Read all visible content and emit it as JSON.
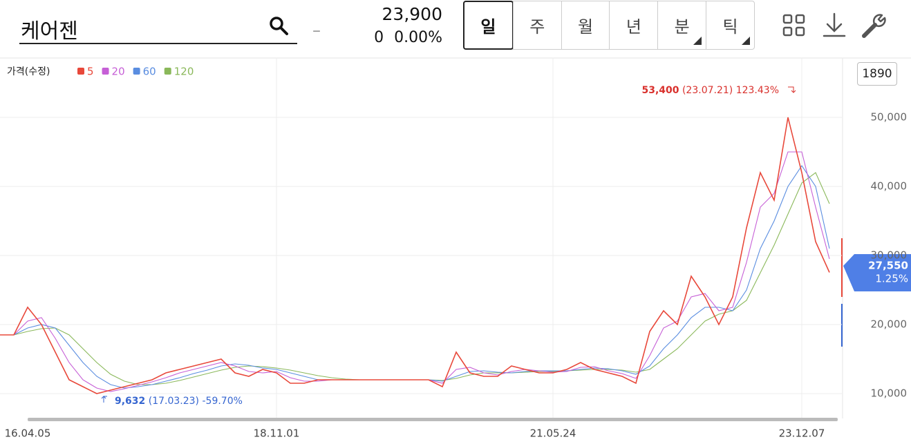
{
  "header": {
    "search": "케어젠",
    "dash": "–",
    "price": "23,900",
    "change": "0  0.00%",
    "tabs": [
      "일",
      "주",
      "월",
      "년",
      "분",
      "틱"
    ],
    "badge": "1890"
  },
  "chart_data": {
    "type": "line",
    "legend_title": "가격(수정)",
    "categories": [
      null,
      null,
      "16.04.05",
      null,
      null,
      null,
      null,
      null,
      null,
      null,
      null,
      null,
      null,
      null,
      null,
      null,
      null,
      null,
      null,
      null,
      "18.11.01",
      null,
      null,
      null,
      null,
      null,
      null,
      null,
      null,
      null,
      null,
      null,
      null,
      null,
      null,
      null,
      null,
      null,
      null,
      null,
      "21.05.24",
      null,
      null,
      null,
      null,
      null,
      null,
      null,
      null,
      null,
      null,
      null,
      null,
      null,
      null,
      null,
      null,
      null,
      "23.12.07",
      null,
      null
    ],
    "series": [
      {
        "name": "5",
        "color": "#e8483a",
        "values": [
          18500,
          18500,
          22500,
          20000,
          16000,
          12000,
          11000,
          10000,
          10500,
          11000,
          11500,
          12000,
          13000,
          13500,
          14000,
          14500,
          15000,
          13000,
          12500,
          13500,
          13000,
          11500,
          11500,
          12000,
          12000,
          12000,
          12000,
          12000,
          12000,
          12000,
          12000,
          12000,
          11000,
          16000,
          13000,
          12500,
          12500,
          14000,
          13500,
          13000,
          13000,
          13500,
          14500,
          13500,
          13000,
          12500,
          11500,
          19000,
          22000,
          20000,
          27000,
          24000,
          20000,
          24000,
          34000,
          42000,
          38000,
          50000,
          42000,
          32000,
          27550
        ]
      },
      {
        "name": "20",
        "color": "#c65fd6",
        "values": [
          18500,
          18500,
          20500,
          21000,
          18000,
          14500,
          12000,
          10800,
          10300,
          10700,
          11200,
          11700,
          12300,
          13000,
          13500,
          14000,
          14500,
          14000,
          13200,
          13000,
          13200,
          12300,
          11800,
          11800,
          12000,
          12000,
          12000,
          12000,
          12000,
          12000,
          12000,
          12000,
          11500,
          13500,
          13800,
          13000,
          12700,
          13200,
          13500,
          13300,
          13100,
          13200,
          13800,
          13900,
          13300,
          12900,
          12200,
          15500,
          19500,
          20500,
          24000,
          24500,
          22000,
          22500,
          29000,
          37000,
          39000,
          45000,
          45000,
          37000,
          29500
        ]
      },
      {
        "name": "60",
        "color": "#5a8de0",
        "values": [
          18500,
          18500,
          19500,
          20000,
          19500,
          17000,
          14500,
          12500,
          11300,
          10800,
          11000,
          11300,
          11800,
          12300,
          12900,
          13400,
          14000,
          14300,
          14100,
          13700,
          13500,
          13000,
          12500,
          12000,
          12000,
          12000,
          12000,
          12000,
          12000,
          12000,
          12000,
          12000,
          11800,
          12500,
          13200,
          13300,
          13100,
          13000,
          13200,
          13300,
          13300,
          13300,
          13500,
          13700,
          13600,
          13300,
          12800,
          14000,
          16500,
          18500,
          21000,
          22500,
          22500,
          22000,
          25000,
          31000,
          35000,
          40000,
          43000,
          40000,
          31000
        ]
      },
      {
        "name": "120",
        "color": "#8ab85a",
        "values": [
          18500,
          18500,
          19000,
          19400,
          19500,
          18500,
          16500,
          14500,
          12800,
          11800,
          11300,
          11300,
          11500,
          11900,
          12400,
          12900,
          13400,
          13800,
          14000,
          13900,
          13700,
          13400,
          13000,
          12600,
          12300,
          12100,
          12000,
          12000,
          12000,
          12000,
          12000,
          12000,
          11900,
          12200,
          12700,
          13000,
          13000,
          13000,
          13100,
          13200,
          13200,
          13300,
          13400,
          13500,
          13500,
          13400,
          13100,
          13500,
          15000,
          16500,
          18500,
          20500,
          21500,
          22000,
          23500,
          27500,
          31500,
          36000,
          40500,
          42000,
          37500
        ]
      }
    ],
    "ylim": [
      6500,
      58600
    ],
    "yticks": [
      {
        "value": 10000,
        "label": "10,000"
      },
      {
        "value": 20000,
        "label": "20,000"
      },
      {
        "value": 30000,
        "label": "30,000"
      },
      {
        "value": 40000,
        "label": "40,000"
      },
      {
        "value": 50000,
        "label": "50,000"
      }
    ],
    "grid": true,
    "annotations": {
      "high": {
        "price": "53,400",
        "date": "(23.07.21)",
        "change": "123.43%"
      },
      "low": {
        "price": "9,632",
        "date": "(17.03.23)",
        "change": "-59.70%"
      },
      "last": {
        "price": "27,550",
        "change": "1.25%"
      }
    }
  }
}
